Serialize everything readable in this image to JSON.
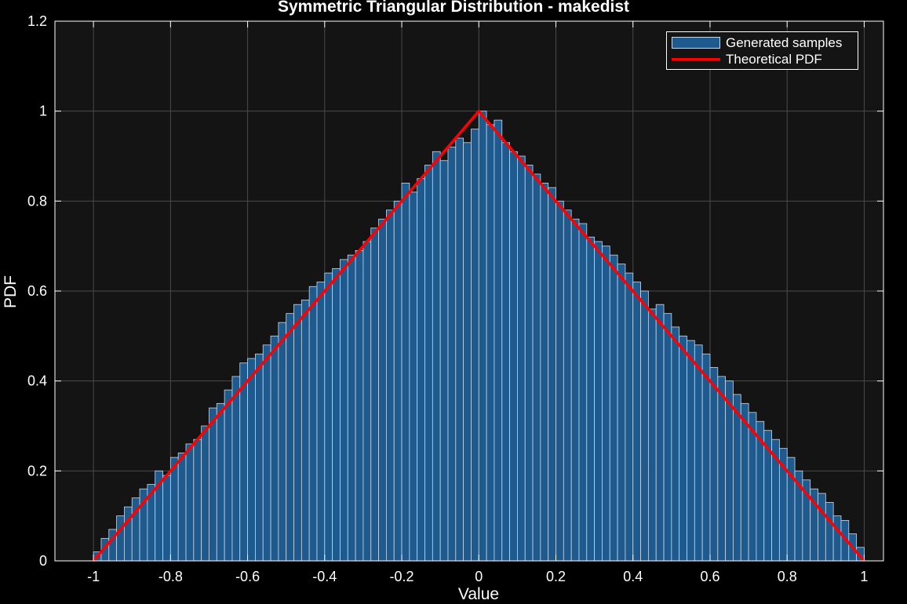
{
  "chart_data": {
    "type": "bar",
    "title": "Symmetric Triangular Distribution - makedist",
    "xlabel": "Value",
    "ylabel": "PDF",
    "xlim": [
      -1.1,
      1.05
    ],
    "ylim": [
      0,
      1.2
    ],
    "xticks": [
      "-1",
      "-0.8",
      "-0.6",
      "-0.4",
      "-0.2",
      "0",
      "0.2",
      "0.4",
      "0.6",
      "0.8",
      "1"
    ],
    "yticks": [
      "0",
      "0.2",
      "0.4",
      "0.6",
      "0.8",
      "1",
      "1.2"
    ],
    "grid": true,
    "legend_position": "top-right",
    "colors": {
      "background": "#141414",
      "bars": "#1f5a8e",
      "bar_edge": "#c8d8e8",
      "pdf_line": "#ff0000",
      "text": "#ffffff"
    },
    "histogram": {
      "name": "Generated samples",
      "bin_edges_start": -1.0,
      "bin_width": 0.02,
      "values": [
        0.02,
        0.05,
        0.07,
        0.1,
        0.12,
        0.14,
        0.16,
        0.17,
        0.2,
        0.19,
        0.23,
        0.24,
        0.26,
        0.27,
        0.3,
        0.34,
        0.35,
        0.38,
        0.41,
        0.44,
        0.45,
        0.46,
        0.48,
        0.5,
        0.53,
        0.55,
        0.57,
        0.58,
        0.61,
        0.62,
        0.64,
        0.65,
        0.67,
        0.68,
        0.69,
        0.71,
        0.74,
        0.76,
        0.78,
        0.8,
        0.84,
        0.82,
        0.85,
        0.88,
        0.91,
        0.89,
        0.92,
        0.94,
        0.93,
        0.96,
        1.0,
        0.97,
        0.98,
        0.93,
        0.91,
        0.9,
        0.88,
        0.86,
        0.84,
        0.83,
        0.8,
        0.78,
        0.76,
        0.75,
        0.72,
        0.71,
        0.7,
        0.68,
        0.66,
        0.64,
        0.62,
        0.6,
        0.56,
        0.57,
        0.55,
        0.52,
        0.5,
        0.49,
        0.48,
        0.46,
        0.43,
        0.41,
        0.4,
        0.37,
        0.35,
        0.33,
        0.31,
        0.29,
        0.27,
        0.25,
        0.23,
        0.2,
        0.18,
        0.16,
        0.15,
        0.13,
        0.1,
        0.09,
        0.06,
        0.03
      ]
    },
    "series": [
      {
        "name": "Theoretical PDF",
        "type": "line",
        "x": [
          -1,
          0,
          1
        ],
        "y": [
          0,
          1,
          0
        ]
      }
    ]
  }
}
